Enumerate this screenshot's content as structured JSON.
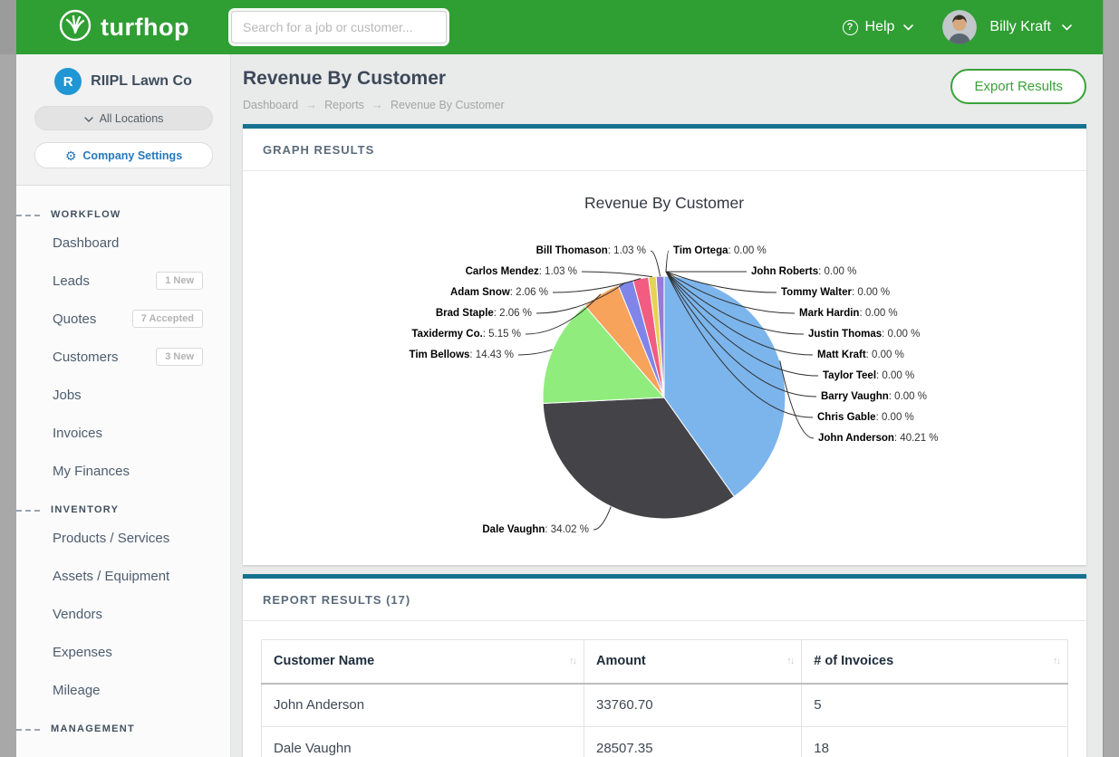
{
  "topbar": {
    "brand": "turfhop",
    "search_placeholder": "Search for a job or customer...",
    "help_label": "Help",
    "help_glyph": "?",
    "user_name": "Billy Kraft"
  },
  "sidebar": {
    "company": {
      "initial": "R",
      "name": "RIIPL Lawn Co"
    },
    "locations_label": "All Locations",
    "company_settings_label": "Company Settings",
    "sections": [
      {
        "label": "WORKFLOW",
        "items": [
          {
            "label": "Dashboard",
            "badge": ""
          },
          {
            "label": "Leads",
            "badge": "1 New"
          },
          {
            "label": "Quotes",
            "badge": "7 Accepted"
          },
          {
            "label": "Customers",
            "badge": "3 New"
          },
          {
            "label": "Jobs",
            "badge": ""
          },
          {
            "label": "Invoices",
            "badge": ""
          },
          {
            "label": "My Finances",
            "badge": ""
          }
        ]
      },
      {
        "label": "INVENTORY",
        "items": [
          {
            "label": "Products / Services",
            "badge": ""
          },
          {
            "label": "Assets / Equipment",
            "badge": ""
          },
          {
            "label": "Vendors",
            "badge": ""
          },
          {
            "label": "Expenses",
            "badge": ""
          },
          {
            "label": "Mileage",
            "badge": ""
          }
        ]
      },
      {
        "label": "MANAGEMENT",
        "items": []
      }
    ]
  },
  "page": {
    "title": "Revenue By Customer",
    "breadcrumb": [
      "Dashboard",
      "Reports",
      "Revenue By Customer"
    ],
    "breadcrumb_sep": "→",
    "export_label": "Export Results"
  },
  "graph_panel": {
    "title": "GRAPH RESULTS"
  },
  "report_panel": {
    "title": "REPORT RESULTS (17)"
  },
  "table": {
    "columns": [
      "Customer Name",
      "Amount",
      "# of Invoices"
    ],
    "sort_glyph": "↑↓",
    "rows": [
      [
        "John Anderson",
        "33760.70",
        "5"
      ],
      [
        "Dale Vaughn",
        "28507.35",
        "18"
      ]
    ]
  },
  "chart_data": {
    "type": "pie",
    "title": "Revenue By Customer",
    "legend_position": "none",
    "value_suffix": " %",
    "slices": [
      {
        "name": "John Anderson",
        "pct": 40.21,
        "color": "#7cb5ec",
        "side": "right"
      },
      {
        "name": "Dale Vaughn",
        "pct": 34.02,
        "color": "#434348",
        "side": "bottom"
      },
      {
        "name": "Tim Bellows",
        "pct": 14.43,
        "color": "#90ed7d",
        "side": "left"
      },
      {
        "name": "Taxidermy Co.",
        "pct": 5.15,
        "color": "#f7a35c",
        "side": "left"
      },
      {
        "name": "Brad Staple",
        "pct": 2.06,
        "color": "#8085e9",
        "side": "left"
      },
      {
        "name": "Adam Snow",
        "pct": 2.06,
        "color": "#f15c80",
        "side": "left"
      },
      {
        "name": "Carlos Mendez",
        "pct": 1.03,
        "color": "#e4d354",
        "side": "left"
      },
      {
        "name": "Bill Thomason",
        "pct": 1.03,
        "color": "#977bd6",
        "side": "left"
      },
      {
        "name": "Tim Ortega",
        "pct": 0.0,
        "color": "#2b908f",
        "side": "right"
      },
      {
        "name": "John Roberts",
        "pct": 0.0,
        "color": "#f45b5b",
        "side": "right"
      },
      {
        "name": "Tommy Walter",
        "pct": 0.0,
        "color": "#91e8e1",
        "side": "right"
      },
      {
        "name": "Mark Hardin",
        "pct": 0.0,
        "color": "#7cb5ec",
        "side": "right"
      },
      {
        "name": "Justin Thomas",
        "pct": 0.0,
        "color": "#434348",
        "side": "right"
      },
      {
        "name": "Matt Kraft",
        "pct": 0.0,
        "color": "#90ed7d",
        "side": "right"
      },
      {
        "name": "Taylor Teel",
        "pct": 0.0,
        "color": "#f7a35c",
        "side": "right"
      },
      {
        "name": "Barry Vaughn",
        "pct": 0.0,
        "color": "#8085e9",
        "side": "right"
      },
      {
        "name": "Chris Gable",
        "pct": 0.0,
        "color": "#f15c80",
        "side": "right"
      }
    ]
  },
  "colors": {
    "topbar_green": "#2f9e33",
    "accent_teal": "#15718f",
    "export_green": "#3aa238",
    "company_avatar_blue": "#2196d4",
    "settings_blue": "#2779bd"
  }
}
